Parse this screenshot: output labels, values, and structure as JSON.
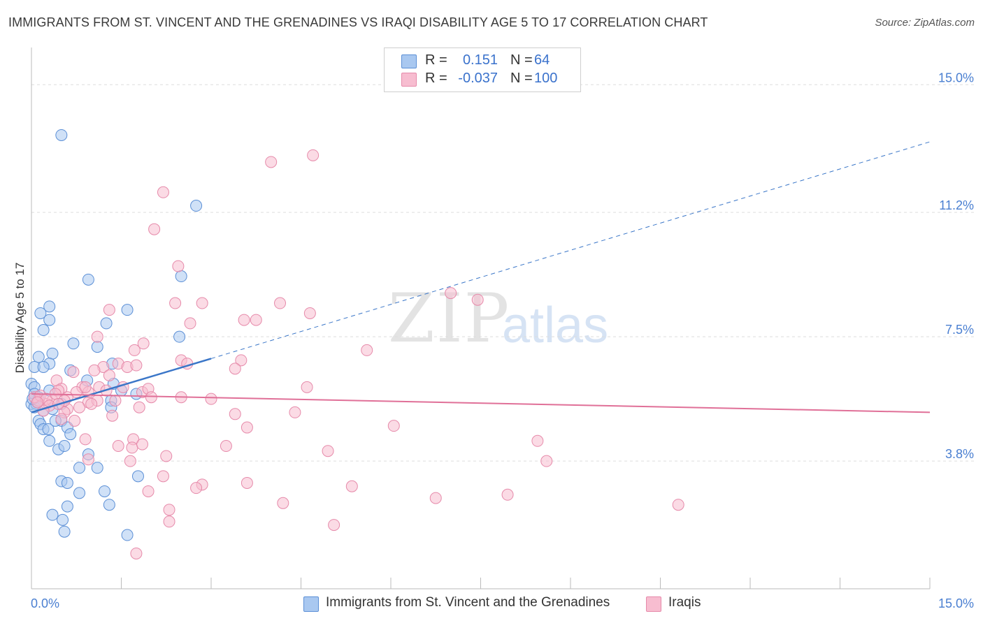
{
  "header": {
    "title": "IMMIGRANTS FROM ST. VINCENT AND THE GRENADINES VS IRAQI DISABILITY AGE 5 TO 17 CORRELATION CHART",
    "source": "Source: ZipAtlas.com"
  },
  "watermark": {
    "zip": "ZIP",
    "atlas": "atlas"
  },
  "legend": {
    "rows": [
      {
        "r_label": "R =",
        "r_value": "0.151",
        "n_label": "N =",
        "n_value": "64",
        "color": "#a9c8f0"
      },
      {
        "r_label": "R =",
        "r_value": "-0.037",
        "n_label": "N =",
        "n_value": "100",
        "color": "#f7bdd0"
      }
    ]
  },
  "bottom_legend": {
    "series1": "Immigrants from St. Vincent and the Grenadines",
    "series2": "Iraqis"
  },
  "colors": {
    "blue_fill": "#a9c8f0",
    "blue_stroke": "#5b8fd6",
    "blue_line": "#3a76c8",
    "pink_fill": "#f7bdd0",
    "pink_stroke": "#e68aaa",
    "pink_line": "#e07098",
    "tick_text": "#4a7fd1",
    "grid": "#dddddd"
  },
  "chart_data": {
    "type": "scatter",
    "title": "IMMIGRANTS FROM ST. VINCENT AND THE GRENADINES VS IRAQI DISABILITY AGE 5 TO 17 CORRELATION CHART",
    "xlabel": "",
    "ylabel": "Disability Age 5 to 17",
    "xlim": [
      0,
      15
    ],
    "ylim": [
      0,
      15.9
    ],
    "x_tick_labels": [
      "0.0%",
      "15.0%"
    ],
    "y_ticks": [
      3.8,
      7.5,
      11.2,
      15.0
    ],
    "y_tick_labels": [
      "3.8%",
      "7.5%",
      "11.2%",
      "15.0%"
    ],
    "grid": "horizontal dashed",
    "legend_position": "top-center",
    "series": [
      {
        "name": "Immigrants from St. Vincent and the Grenadines",
        "color": "#a9c8f0",
        "R": 0.151,
        "N": 64,
        "trend": {
          "x": [
            0,
            3.0
          ],
          "y": [
            5.25,
            6.85
          ],
          "extended_x": [
            3.0,
            15.0
          ],
          "extended_y": [
            6.85,
            13.3
          ]
        },
        "points": [
          [
            0.5,
            13.5
          ],
          [
            2.75,
            11.4
          ],
          [
            0.95,
            9.2
          ],
          [
            2.5,
            9.3
          ],
          [
            0.3,
            8.4
          ],
          [
            0.15,
            8.2
          ],
          [
            0.3,
            8.0
          ],
          [
            1.25,
            7.9
          ],
          [
            0.2,
            7.7
          ],
          [
            1.6,
            8.3
          ],
          [
            2.47,
            7.5
          ],
          [
            0.7,
            7.3
          ],
          [
            1.1,
            7.2
          ],
          [
            0.35,
            7.0
          ],
          [
            0.12,
            6.9
          ],
          [
            1.35,
            6.7
          ],
          [
            0.3,
            6.7
          ],
          [
            0.05,
            6.6
          ],
          [
            0.2,
            6.6
          ],
          [
            0.65,
            6.5
          ],
          [
            0.93,
            6.2
          ],
          [
            1.37,
            6.1
          ],
          [
            0.0,
            6.1
          ],
          [
            0.05,
            6.0
          ],
          [
            1.5,
            5.9
          ],
          [
            0.3,
            5.9
          ],
          [
            0.05,
            5.8
          ],
          [
            1.75,
            5.8
          ],
          [
            0.12,
            5.7
          ],
          [
            1.33,
            5.6
          ],
          [
            0.0,
            5.5
          ],
          [
            0.08,
            5.5
          ],
          [
            0.5,
            5.5
          ],
          [
            1.33,
            5.4
          ],
          [
            0.2,
            5.3
          ],
          [
            0.5,
            5.0
          ],
          [
            0.12,
            5.0
          ],
          [
            0.15,
            4.9
          ],
          [
            0.6,
            4.8
          ],
          [
            0.2,
            4.75
          ],
          [
            0.28,
            4.75
          ],
          [
            0.65,
            4.6
          ],
          [
            0.3,
            4.4
          ],
          [
            0.45,
            4.15
          ],
          [
            0.55,
            4.25
          ],
          [
            0.95,
            4.0
          ],
          [
            0.8,
            3.6
          ],
          [
            1.1,
            3.6
          ],
          [
            1.78,
            3.35
          ],
          [
            0.5,
            3.2
          ],
          [
            0.6,
            3.15
          ],
          [
            0.8,
            2.85
          ],
          [
            1.22,
            2.9
          ],
          [
            0.6,
            2.45
          ],
          [
            1.3,
            2.5
          ],
          [
            0.35,
            2.2
          ],
          [
            0.52,
            2.05
          ],
          [
            0.55,
            1.7
          ],
          [
            1.6,
            1.6
          ],
          [
            0.05,
            5.4
          ],
          [
            0.35,
            5.35
          ],
          [
            0.1,
            5.55
          ],
          [
            0.02,
            5.65
          ],
          [
            0.4,
            5.0
          ]
        ]
      },
      {
        "name": "Iraqis",
        "color": "#f7bdd0",
        "R": -0.037,
        "N": 100,
        "trend": {
          "x": [
            0,
            15.0
          ],
          "y": [
            5.8,
            5.25
          ]
        },
        "points": [
          [
            4.7,
            12.9
          ],
          [
            4.0,
            12.7
          ],
          [
            2.2,
            11.8
          ],
          [
            2.05,
            10.7
          ],
          [
            2.45,
            9.6
          ],
          [
            7.0,
            8.8
          ],
          [
            7.45,
            8.6
          ],
          [
            4.15,
            8.5
          ],
          [
            2.4,
            8.5
          ],
          [
            2.85,
            8.5
          ],
          [
            1.3,
            8.3
          ],
          [
            4.65,
            8.2
          ],
          [
            3.55,
            8.0
          ],
          [
            3.75,
            8.0
          ],
          [
            2.65,
            7.9
          ],
          [
            1.1,
            7.5
          ],
          [
            1.87,
            7.3
          ],
          [
            1.72,
            7.1
          ],
          [
            5.6,
            7.1
          ],
          [
            3.5,
            6.8
          ],
          [
            2.5,
            6.8
          ],
          [
            2.6,
            6.7
          ],
          [
            1.45,
            6.7
          ],
          [
            1.2,
            6.6
          ],
          [
            3.4,
            6.55
          ],
          [
            1.05,
            6.5
          ],
          [
            0.7,
            6.45
          ],
          [
            1.6,
            6.6
          ],
          [
            1.75,
            6.65
          ],
          [
            1.3,
            6.35
          ],
          [
            0.42,
            6.2
          ],
          [
            1.53,
            6.0
          ],
          [
            1.13,
            6.0
          ],
          [
            0.85,
            6.0
          ],
          [
            4.6,
            6.0
          ],
          [
            0.5,
            5.95
          ],
          [
            0.45,
            5.9
          ],
          [
            0.95,
            5.85
          ],
          [
            1.85,
            5.85
          ],
          [
            1.95,
            5.95
          ],
          [
            0.75,
            5.85
          ],
          [
            2.5,
            5.7
          ],
          [
            3.0,
            5.65
          ],
          [
            2.0,
            5.7
          ],
          [
            1.4,
            5.6
          ],
          [
            0.95,
            5.55
          ],
          [
            0.25,
            5.5
          ],
          [
            0.35,
            5.6
          ],
          [
            0.12,
            5.6
          ],
          [
            1.1,
            5.6
          ],
          [
            1.8,
            5.4
          ],
          [
            0.6,
            5.35
          ],
          [
            4.4,
            5.25
          ],
          [
            3.4,
            5.2
          ],
          [
            1.35,
            5.15
          ],
          [
            0.55,
            5.25
          ],
          [
            0.72,
            5.0
          ],
          [
            0.5,
            5.05
          ],
          [
            3.6,
            4.8
          ],
          [
            6.05,
            4.85
          ],
          [
            1.7,
            4.45
          ],
          [
            0.9,
            4.45
          ],
          [
            1.68,
            4.2
          ],
          [
            1.85,
            4.3
          ],
          [
            1.45,
            4.25
          ],
          [
            3.25,
            4.25
          ],
          [
            4.95,
            4.1
          ],
          [
            2.25,
            3.95
          ],
          [
            8.45,
            4.4
          ],
          [
            8.6,
            3.8
          ],
          [
            1.65,
            3.8
          ],
          [
            0.95,
            3.85
          ],
          [
            2.2,
            3.35
          ],
          [
            3.6,
            3.15
          ],
          [
            2.85,
            3.1
          ],
          [
            2.75,
            3.0
          ],
          [
            5.35,
            3.05
          ],
          [
            1.95,
            2.9
          ],
          [
            6.75,
            2.7
          ],
          [
            7.95,
            2.8
          ],
          [
            4.2,
            2.55
          ],
          [
            10.8,
            2.5
          ],
          [
            2.3,
            2.35
          ],
          [
            2.3,
            2.0
          ],
          [
            5.05,
            1.9
          ],
          [
            1.75,
            1.05
          ],
          [
            0.05,
            5.7
          ],
          [
            0.15,
            5.75
          ],
          [
            0.25,
            5.65
          ],
          [
            0.3,
            5.45
          ],
          [
            0.4,
            5.8
          ],
          [
            0.6,
            5.7
          ],
          [
            0.2,
            5.3
          ],
          [
            0.9,
            6.0
          ],
          [
            1.0,
            5.5
          ],
          [
            0.1,
            5.55
          ],
          [
            0.55,
            5.6
          ],
          [
            0.8,
            5.4
          ],
          [
            1.25,
            5.9
          ],
          [
            0.45,
            5.5
          ]
        ]
      }
    ]
  }
}
